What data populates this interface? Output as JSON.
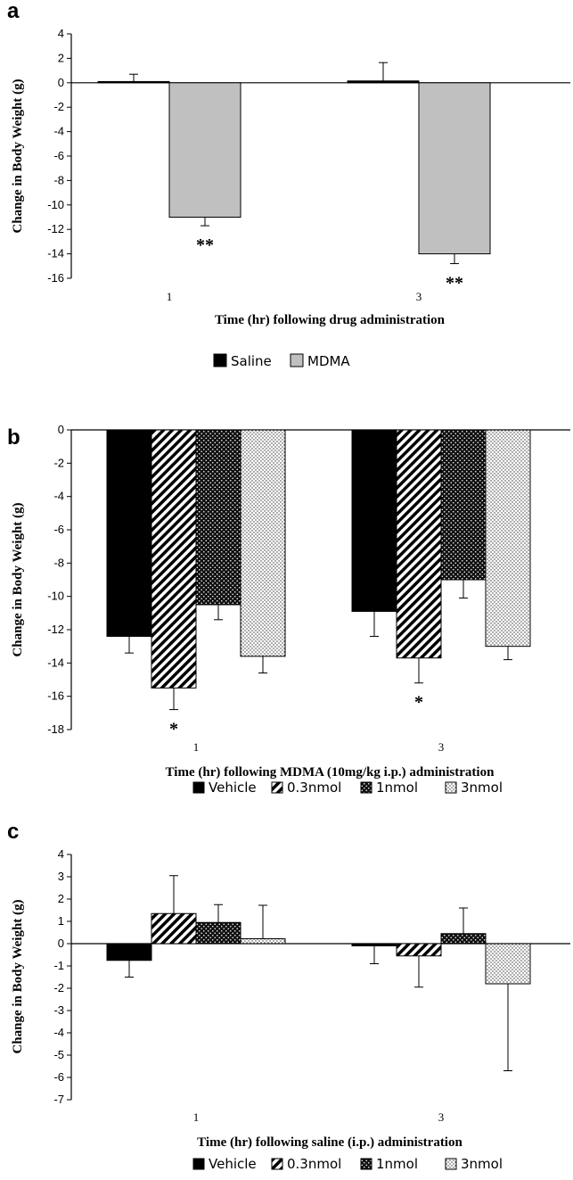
{
  "chart_data": [
    {
      "type": "bar",
      "panel_letter": "a",
      "title": "",
      "categories": [
        "1",
        "3"
      ],
      "xlabel": "Time (hr) following drug administration",
      "ylabel": "Change in Body Weight (g)",
      "ylim": [
        -16,
        4
      ],
      "ystep": 2,
      "grid": false,
      "legend_position": "bottom",
      "series": [
        {
          "name": "Saline",
          "values": [
            0.1,
            0.15
          ],
          "errors": [
            0.6,
            1.5
          ],
          "fill": "solid-black"
        },
        {
          "name": "MDMA",
          "values": [
            -11,
            -14
          ],
          "errors": [
            0.7,
            0.8
          ],
          "fill": "solid-gray"
        }
      ],
      "annotations": [
        {
          "text": "**",
          "category": 0,
          "series": 1
        },
        {
          "text": "**",
          "category": 1,
          "series": 1
        }
      ]
    },
    {
      "type": "bar",
      "panel_letter": "b",
      "title": "",
      "categories": [
        "1",
        "3"
      ],
      "xlabel": "Time (hr) following MDMA (10mg/kg i.p.) administration",
      "ylabel": "Change in Body Weight (g)",
      "ylim": [
        -18,
        0
      ],
      "ystep": 2,
      "grid": false,
      "legend_position": "bottom",
      "series": [
        {
          "name": "Vehicle",
          "values": [
            -12.4,
            -10.9
          ],
          "errors": [
            1.0,
            1.5
          ],
          "fill": "solid-black"
        },
        {
          "name": "0.3nmol",
          "values": [
            -15.5,
            -13.7
          ],
          "errors": [
            1.3,
            1.5
          ],
          "fill": "diagonal-hatch"
        },
        {
          "name": "1nmol",
          "values": [
            -10.5,
            -9.0
          ],
          "errors": [
            0.9,
            1.1
          ],
          "fill": "dark-crosshatch"
        },
        {
          "name": "3nmol",
          "values": [
            -13.6,
            -13.0
          ],
          "errors": [
            1.0,
            0.8
          ],
          "fill": "light-dots"
        }
      ],
      "annotations": [
        {
          "text": "*",
          "category": 0,
          "series": 1
        },
        {
          "text": "*",
          "category": 1,
          "series": 1
        }
      ]
    },
    {
      "type": "bar",
      "panel_letter": "c",
      "title": "",
      "categories": [
        "1",
        "3"
      ],
      "xlabel": "Time (hr) following saline (i.p.) administration",
      "ylabel": "Change in Body Weight (g)",
      "ylim": [
        -7,
        4
      ],
      "ystep": 1,
      "grid": false,
      "legend_position": "bottom",
      "series": [
        {
          "name": "Vehicle",
          "values": [
            -0.75,
            -0.1
          ],
          "errors": [
            0.75,
            0.8
          ],
          "fill": "solid-black"
        },
        {
          "name": "0.3nmol",
          "values": [
            1.35,
            -0.55
          ],
          "errors": [
            1.7,
            1.4
          ],
          "fill": "diagonal-hatch"
        },
        {
          "name": "1nmol",
          "values": [
            0.95,
            0.45
          ],
          "errors": [
            0.8,
            1.15
          ],
          "fill": "dark-crosshatch"
        },
        {
          "name": "3nmol",
          "values": [
            0.22,
            -1.8
          ],
          "errors": [
            1.5,
            3.9
          ],
          "fill": "light-dots"
        }
      ],
      "annotations": []
    }
  ]
}
